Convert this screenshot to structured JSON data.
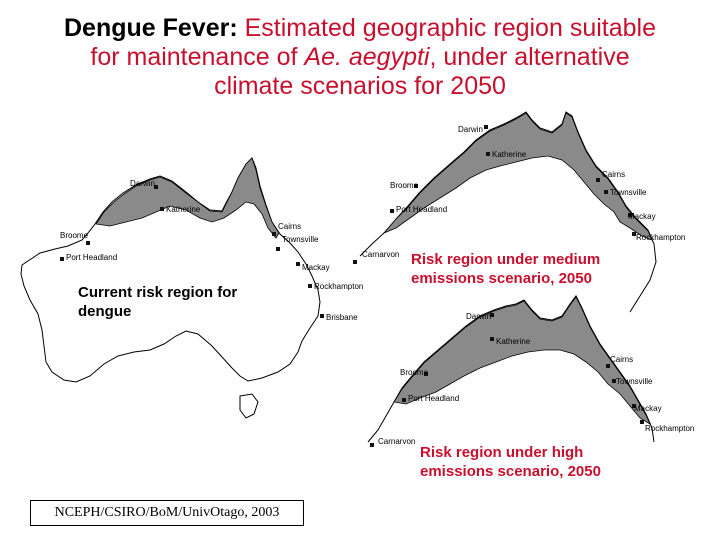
{
  "title": {
    "lead": "Dengue Fever:",
    "line1_rest": " Estimated geographic region suitable",
    "line2_pre": "for maintenance of ",
    "line2_species": "Ae. aegypti",
    "line2_post": ", under alternative",
    "line3": "climate scenarios for 2050"
  },
  "colors": {
    "risk_fill": "#8a8a8a",
    "caption_red": "#c8102e",
    "outline": "#000000"
  },
  "maps": {
    "current": {
      "caption": "Current risk region for dengue",
      "cities": {
        "darwin": "Darwin",
        "katherine": "Katherine",
        "broome": "Broome",
        "port_headland": "Port Headland",
        "cairns": "Cairns",
        "townsville": "Townsville",
        "mackay": "Mackay",
        "rockhampton": "Rockhampton",
        "brisbane": "Brisbane"
      }
    },
    "medium": {
      "caption": "Risk region under medium emissions scenario, 2050",
      "cities": {
        "darwin": "Darwin",
        "katherine": "Katherine",
        "broome": "Broome",
        "port_headland": "Port Headland",
        "cairns": "Cairns",
        "townsville": "Townsville",
        "mackay": "Mackay",
        "rockhampton": "Rockhampton",
        "carnarvon": "Carnarvon"
      }
    },
    "high": {
      "caption": "Risk region under high emissions scenario, 2050",
      "cities": {
        "darwin": "Darwin",
        "katherine": "Katherine",
        "broome": "Broome",
        "port_headland": "Port Headland",
        "cairns": "Cairns",
        "townsville": "Townsville",
        "mackay": "Mackay",
        "rockhampton": "Rockhampton",
        "carnarvon": "Carnarvon"
      }
    }
  },
  "credit": "NCEPH/CSIRO/BoM/UnivOtago, 2003"
}
